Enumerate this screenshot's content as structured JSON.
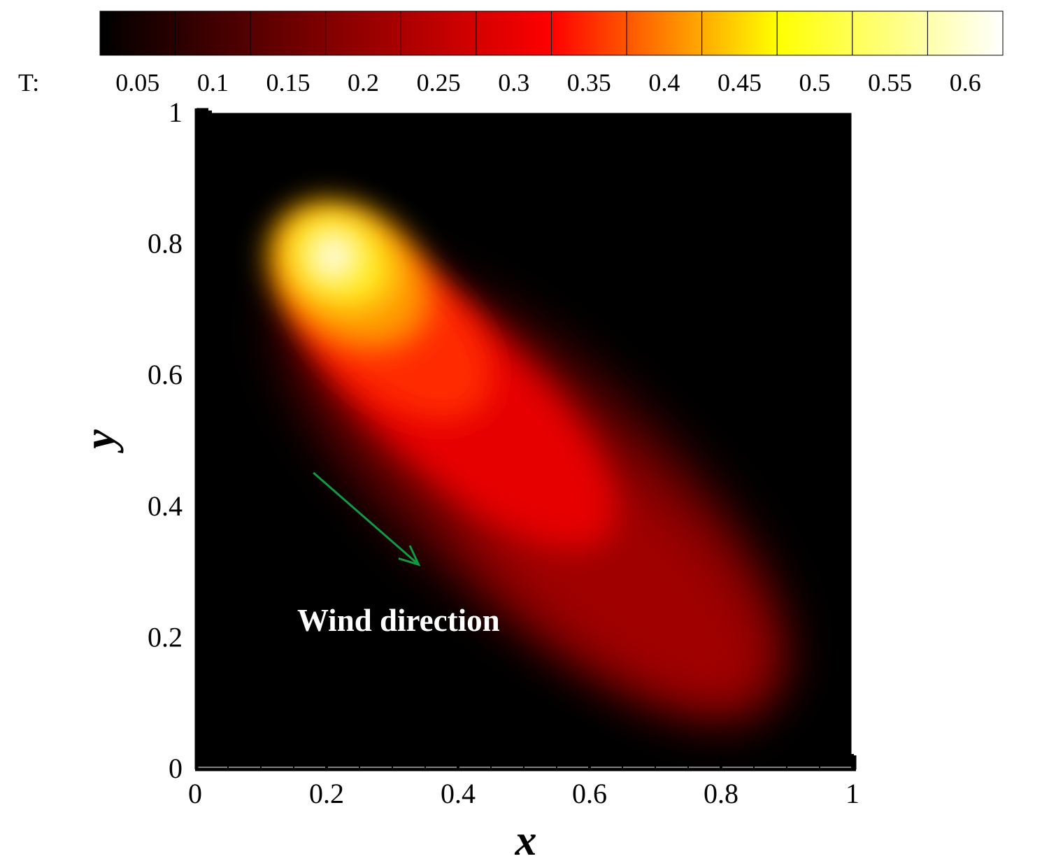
{
  "chart_data": {
    "type": "heatmap",
    "xlabel": "x",
    "ylabel": "y",
    "xlim": [
      0,
      1
    ],
    "ylim": [
      0,
      1
    ],
    "x_ticks": [
      "0",
      "0.2",
      "0.4",
      "0.6",
      "0.8",
      "1"
    ],
    "y_ticks": [
      "0",
      "0.2",
      "0.4",
      "0.6",
      "0.8",
      "1"
    ],
    "grid": false,
    "colorbar": {
      "label": "T:",
      "placement": "top",
      "range": [
        0.025,
        0.625
      ],
      "tick_labels": [
        "0.05",
        "0.1",
        "0.15",
        "0.2",
        "0.25",
        "0.3",
        "0.35",
        "0.4",
        "0.45",
        "0.5",
        "0.55",
        "0.6"
      ],
      "colors": [
        "#000000",
        "#2a0000",
        "#550000",
        "#800000",
        "#aa0000",
        "#d50000",
        "#ff0000",
        "#ff5500",
        "#ffaa00",
        "#ffff00",
        "#ffff55",
        "#ffffaa",
        "#ffffff"
      ]
    },
    "peak": {
      "x": 0.21,
      "y": 0.78,
      "value": 0.62
    },
    "annotation": {
      "text": "Wind direction",
      "arrow_from": [
        0.18,
        0.45
      ],
      "arrow_to": [
        0.34,
        0.31
      ],
      "arrow_color": "#129a3e"
    }
  }
}
